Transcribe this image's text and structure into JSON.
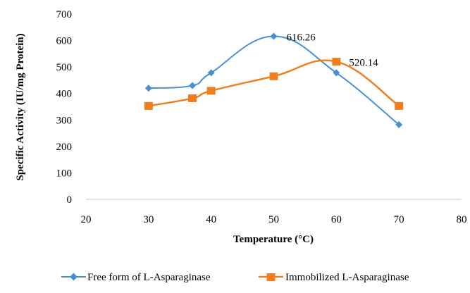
{
  "chart_data": {
    "type": "line",
    "xlabel": "Temperature (°C)",
    "ylabel": "Specific Activity  (IU/mg Protein)",
    "xlim": [
      20,
      80
    ],
    "ylim": [
      0,
      700
    ],
    "xticks": [
      20,
      30,
      40,
      50,
      60,
      70,
      80
    ],
    "yticks": [
      0,
      100,
      200,
      300,
      400,
      500,
      600,
      700
    ],
    "grid": false,
    "legend_position": "bottom",
    "series": [
      {
        "name": "Free form of L-Asparaginase",
        "color": "#4a8fd6",
        "marker": "diamond",
        "x": [
          30,
          37,
          40,
          50,
          60,
          70
        ],
        "y": [
          420,
          430,
          478,
          616.26,
          478,
          282
        ],
        "smooth": true
      },
      {
        "name": "Immobilized L-Asparaginase",
        "color": "#f07e1e",
        "marker": "square",
        "x": [
          30,
          37,
          40,
          50,
          60,
          70
        ],
        "y": [
          353,
          382,
          410,
          465,
          520.14,
          353
        ],
        "smooth": true
      }
    ],
    "annotations": [
      {
        "text": "616.26",
        "series": 0,
        "point": 3
      },
      {
        "text": "520.14",
        "series": 1,
        "point": 4
      }
    ]
  }
}
